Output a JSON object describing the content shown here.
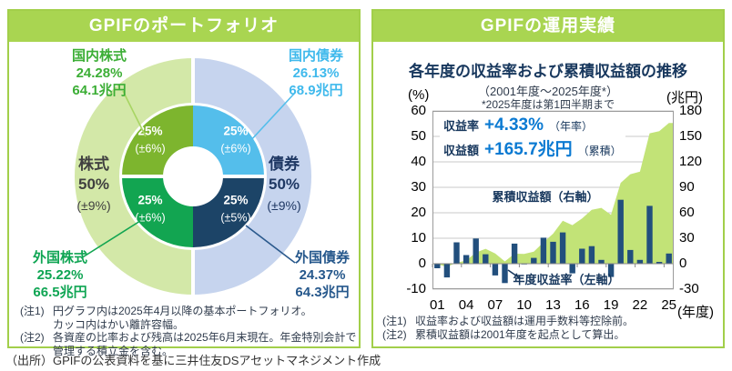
{
  "source": "（出所）GPIFの公表資料を基に三井住友DSアセットマネジメント作成",
  "portfolio": {
    "header": "GPIFのポートフォリオ",
    "assets": [
      {
        "name": "国内株式",
        "share": "24.28%",
        "amount": "64.1兆円",
        "inner_pct": "25%",
        "inner_band": "(±6%)"
      },
      {
        "name": "国内債券",
        "share": "26.13%",
        "amount": "68.9兆円",
        "inner_pct": "25%",
        "inner_band": "(±6%)"
      },
      {
        "name": "外国株式",
        "share": "25.22%",
        "amount": "66.5兆円",
        "inner_pct": "25%",
        "inner_band": "(±6%)"
      },
      {
        "name": "外国債券",
        "share": "24.37%",
        "amount": "64.3兆円",
        "inner_pct": "25%",
        "inner_band": "(±5%)"
      }
    ],
    "groups": [
      {
        "name": "株式",
        "pct": "50%",
        "band": "(±9%)"
      },
      {
        "name": "債券",
        "pct": "50%",
        "band": "(±9%)"
      }
    ],
    "notes": [
      {
        "label": "(注1)",
        "text": "円グラフ内は2025年4月以降の基本ポートフォリオ。\nカッコ内はかい離許容幅。"
      },
      {
        "label": "(注2)",
        "text": "各資産の比率および残高は2025年6月末現在。年金特別会計で\n管理する積立金を含む。"
      }
    ],
    "colors": {
      "domestic_equity": "#7DB52E",
      "domestic_bond": "#54BEEB",
      "foreign_equity": "#12A551",
      "foreign_bond": "#1C4467",
      "equity_outer": "#D3E8A8",
      "bond_outer": "#C6D4EE"
    }
  },
  "performance": {
    "header": "GPIFの運用実績",
    "title": "各年度の収益率および累積収益額の推移",
    "subtitle": "（2001年度～2025年度*）",
    "subtitle_note": "*2025年度は第1四半期まで",
    "left_axis_unit": "(%)",
    "right_axis_unit": "(兆円)",
    "x_axis_unit": "(年度)",
    "annotation": {
      "rate_label": "収益率",
      "rate_value": "+4.33%",
      "rate_suffix": "（年率）",
      "amount_label": "収益額",
      "amount_value": "+165.7兆円",
      "amount_suffix": "（累積）"
    },
    "area_series_label": "累積収益額（右軸）",
    "bar_series_label": "年度収益率（左軸）",
    "notes": [
      {
        "label": "(注1)",
        "text": "収益率および収益額は運用手数料等控除前。"
      },
      {
        "label": "(注2)",
        "text": "累積収益額は2001年度を起点として算出。"
      }
    ],
    "colors": {
      "bar": "#224F7D",
      "area": "#C2E377",
      "accent_blue": "#0B7AD2",
      "navy": "#17375D",
      "header_green": "#A9D551"
    }
  },
  "chart_data": {
    "type": "combo",
    "title": "各年度の収益率および累積収益額の推移",
    "years": [
      2001,
      2002,
      2003,
      2004,
      2005,
      2006,
      2007,
      2008,
      2009,
      2010,
      2011,
      2012,
      2013,
      2014,
      2015,
      2016,
      2017,
      2018,
      2019,
      2020,
      2021,
      2022,
      2023,
      2024,
      2025
    ],
    "series": [
      {
        "name": "年度収益率（左軸）",
        "type": "bar",
        "axis": "left",
        "unit": "%",
        "values": [
          -1.8,
          -5.4,
          8.4,
          3.4,
          9.9,
          3.7,
          -4.6,
          -7.6,
          7.9,
          -0.3,
          2.3,
          10.2,
          8.6,
          12.3,
          -3.8,
          5.9,
          6.9,
          1.5,
          -5.2,
          25.1,
          5.4,
          1.5,
          22.7,
          0.7,
          4.0
        ]
      },
      {
        "name": "累積収益額（右軸）",
        "type": "area",
        "axis": "right",
        "unit": "兆円",
        "values": [
          -0.6,
          -3.6,
          1.2,
          3.8,
          13.1,
          17.6,
          12.0,
          2.7,
          11.8,
          11.5,
          14.1,
          25.2,
          35.4,
          50.7,
          45.4,
          53.4,
          63.4,
          65.8,
          57.5,
          95.3,
          105.4,
          108.4,
          153.6,
          156.1,
          165.7
        ]
      }
    ],
    "left_axis": {
      "unit": "%",
      "min": -10,
      "max": 60,
      "ticks": [
        60,
        50,
        40,
        30,
        20,
        10,
        0,
        -10
      ]
    },
    "right_axis": {
      "unit": "兆円",
      "min": -30,
      "max": 180,
      "ticks": [
        180,
        150,
        120,
        90,
        60,
        30,
        0,
        -30
      ]
    },
    "x_tick_labels": [
      "01",
      "04",
      "07",
      "10",
      "13",
      "16",
      "19",
      "22",
      "25"
    ],
    "x_axis_suffix": "(年度)",
    "grid": true,
    "legend_position": "in-plot"
  }
}
